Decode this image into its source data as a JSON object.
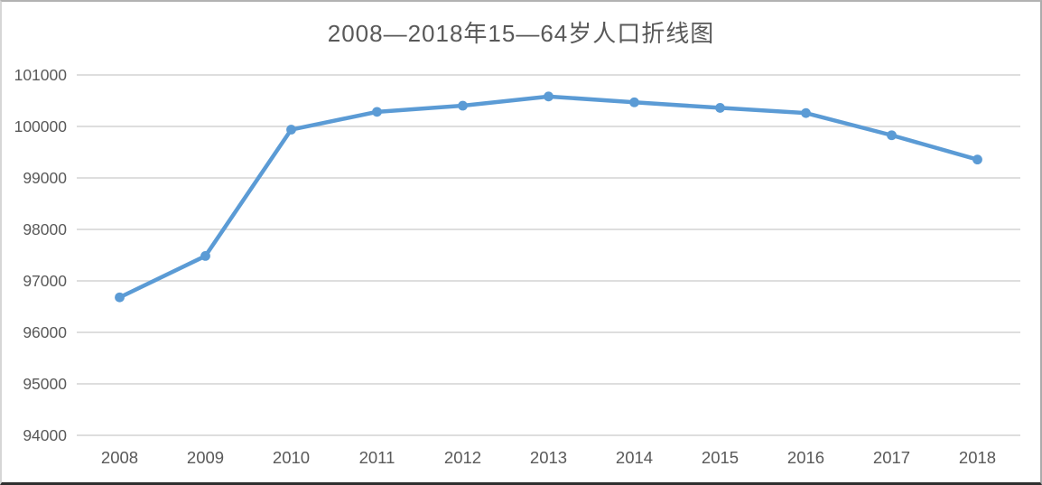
{
  "chart_data": {
    "type": "line",
    "title": "2008—2018年15—64岁人口折线图",
    "categories": [
      "2008",
      "2009",
      "2010",
      "2011",
      "2012",
      "2013",
      "2014",
      "2015",
      "2016",
      "2017",
      "2018"
    ],
    "values": [
      96680,
      97484,
      99938,
      100283,
      100403,
      100582,
      100469,
      100361,
      100260,
      99829,
      99357
    ],
    "xlabel": "",
    "ylabel": "",
    "ylim": [
      94000,
      101000
    ],
    "ytick_step": 1000,
    "ytick_labels": [
      "94000",
      "95000",
      "96000",
      "97000",
      "98000",
      "99000",
      "100000",
      "101000"
    ],
    "grid": true,
    "legend": "none",
    "marker": "circle",
    "colors": {
      "line": "#5B9BD5",
      "marker": "#5B9BD5",
      "grid": "#D9D9D9",
      "text": "#595959"
    }
  }
}
